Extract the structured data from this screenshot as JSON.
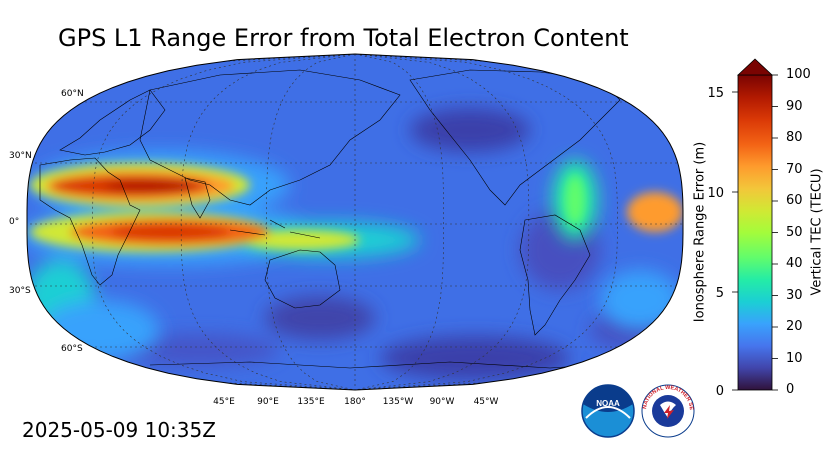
{
  "title": "GPS L1 Range Error from Total Electron Content",
  "timestamp": "2025-05-09 10:35Z",
  "map": {
    "projection": "Robinson",
    "lat_labels": [
      "60°N",
      "30°N",
      "0°",
      "30°S",
      "60°S"
    ],
    "lon_labels": [
      "45°E",
      "90°E",
      "135°E",
      "180°",
      "135°W",
      "90°W",
      "45°W"
    ]
  },
  "colorbar": {
    "left_label": "Ionosphere Range Error (m)",
    "left_ticks": [
      "0",
      "5",
      "10",
      "15"
    ],
    "right_label": "Vertical TEC (TECU)",
    "right_ticks": [
      "0",
      "10",
      "20",
      "30",
      "40",
      "50",
      "60",
      "70",
      "80",
      "90",
      "100"
    ],
    "extend": "max",
    "colormap": [
      "#30123b",
      "#4145ab",
      "#4675ed",
      "#39a2fc",
      "#1bcfd4",
      "#24eca6",
      "#61fc6c",
      "#a4fc3b",
      "#d1e834",
      "#f3c63a",
      "#fe9b2d",
      "#f36315",
      "#d93806",
      "#b11901",
      "#7a0402"
    ]
  },
  "logos": {
    "noaa": {
      "text": "NOAA",
      "color": "#0a3c8c"
    },
    "nws": {
      "text": "NATIONAL WEATHER SERVICE",
      "color": "#d0202a"
    }
  }
}
